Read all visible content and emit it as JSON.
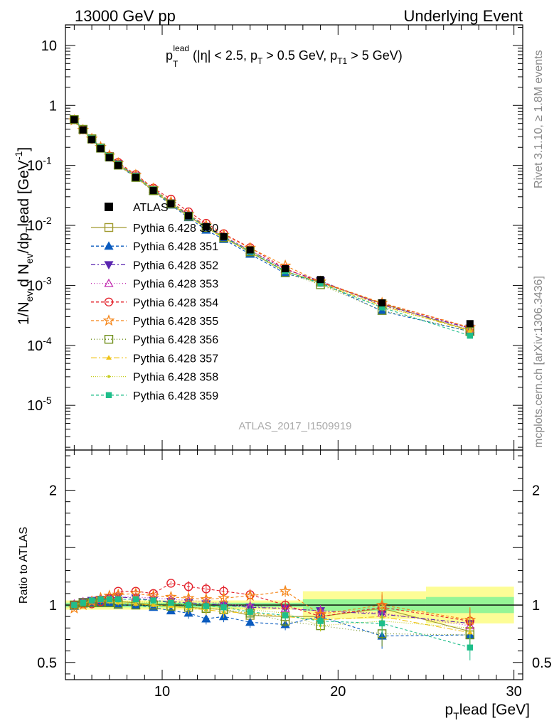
{
  "header": {
    "left": "13000 GeV pp",
    "right": "Underlying Event"
  },
  "side": {
    "rivet": "Rivet 3.1.10, ≥ 1.8M events",
    "mcplots": "mcplots.cern.ch [arXiv:1306.3436]"
  },
  "chart_data": [
    {
      "type": "line",
      "panel": "main",
      "title": "p_T^lead (|η| < 2.5, p_T > 0.5 GeV, p_T1 > 5 GeV)",
      "title_parts": {
        "p1": "p",
        "sup1": "lead",
        "sub1": "T",
        "mid": " (|η| < 2.5, p",
        "sub2": "T",
        "mid2": " > 0.5 GeV, p",
        "sub3": "T1",
        "end": " > 5 GeV)"
      },
      "ylabel": "1/N_ev d N_ev/dp_T^lead [GeV^-1]",
      "ylabel_parts": {
        "a": "1/N",
        "sub1": "ev",
        "b": " d N",
        "sub2": "ev",
        "c": "/dp",
        "sub3": "T",
        "d": "lead [GeV",
        "sup": "-1",
        "e": "]"
      },
      "yscale": "log",
      "ylim": [
        1.8e-06,
        22
      ],
      "xlim": [
        4.5,
        30.5
      ],
      "watermark": "ATLAS_2017_I1509919",
      "ytick_labels": [
        {
          "mant": "10",
          "exp": "-5",
          "v": 1e-05
        },
        {
          "mant": "10",
          "exp": "-4",
          "v": 0.0001
        },
        {
          "mant": "10",
          "exp": "-3",
          "v": 0.001
        },
        {
          "mant": "10",
          "exp": "-2",
          "v": 0.01
        },
        {
          "mant": "10",
          "exp": "-1",
          "v": 0.1
        },
        {
          "mant": "1",
          "exp": "",
          "v": 1
        },
        {
          "mant": "10",
          "exp": "",
          "v": 10
        }
      ],
      "x": [
        5.0,
        5.5,
        6.0,
        6.5,
        7.0,
        7.5,
        8.5,
        9.5,
        10.5,
        11.5,
        12.5,
        13.5,
        15.0,
        17.0,
        19.0,
        22.5,
        27.5
      ],
      "atlas_values": [
        0.58,
        0.39,
        0.27,
        0.19,
        0.135,
        0.1,
        0.063,
        0.038,
        0.023,
        0.0145,
        0.0095,
        0.0065,
        0.0039,
        0.0019,
        0.00125,
        0.00051,
        0.00023
      ],
      "legend_position": "center-left"
    },
    {
      "type": "line",
      "panel": "ratio",
      "ylabel": "Ratio to ATLAS",
      "xlabel": "p_T^lead [GeV]",
      "xlabel_parts": {
        "a": "p",
        "sub": "T",
        "b": "lead [GeV]"
      },
      "ylim": [
        0.35,
        2.35
      ],
      "xlim": [
        4.5,
        30.5
      ],
      "xtick_labels": [
        "10",
        "20",
        "30"
      ],
      "ytick_labels": [
        "0.5",
        "1",
        "2"
      ],
      "xticks": [
        10,
        20,
        30
      ],
      "yticks": [
        0.5,
        1,
        2
      ],
      "atlas_uncertainty_bands": [
        {
          "x0": 4.5,
          "x1": 18.0,
          "inner": 0.02,
          "outer": 0.04
        },
        {
          "x0": 18.0,
          "x1": 25.0,
          "inner": 0.05,
          "outer": 0.12
        },
        {
          "x0": 25.0,
          "x1": 30.0,
          "inner": 0.07,
          "outer": 0.16
        }
      ],
      "x": [
        5.0,
        5.5,
        6.0,
        6.5,
        7.0,
        7.5,
        8.5,
        9.5,
        10.5,
        11.5,
        12.5,
        13.5,
        15.0,
        17.0,
        19.0,
        22.5,
        27.5
      ],
      "series": [
        {
          "name": "Pythia 6.428 350",
          "color": "#a09a2e",
          "marker": "square-open",
          "dash": "",
          "values": [
            1.0,
            1.02,
            1.03,
            1.03,
            1.04,
            1.03,
            1.02,
            1.0,
            0.99,
            0.98,
            0.97,
            0.96,
            0.91,
            0.9,
            0.9,
            0.97,
            0.77
          ]
        },
        {
          "name": "Pythia 6.428 351",
          "color": "#0a5bbf",
          "marker": "triangle-up",
          "dash": "4,3",
          "values": [
            0.99,
            1.01,
            1.02,
            1.02,
            1.02,
            1.0,
            1.0,
            0.98,
            0.95,
            0.93,
            0.88,
            0.9,
            0.85,
            0.83,
            0.9,
            0.73,
            0.74
          ]
        },
        {
          "name": "Pythia 6.428 352",
          "color": "#5a26b0",
          "marker": "triangle-down",
          "dash": "6,3,2,3",
          "values": [
            1.0,
            1.03,
            1.04,
            1.05,
            1.06,
            1.07,
            1.06,
            1.04,
            1.03,
            1.02,
            1.01,
            1.0,
            0.98,
            0.97,
            0.95,
            0.92,
            0.84
          ]
        },
        {
          "name": "Pythia 6.428 353",
          "color": "#c22db0",
          "marker": "triangle-up-open",
          "dash": "1,3",
          "values": [
            1.01,
            1.03,
            1.04,
            1.05,
            1.06,
            1.07,
            1.07,
            1.06,
            1.05,
            1.04,
            1.03,
            1.01,
            0.99,
            0.97,
            0.95,
            0.93,
            0.82
          ]
        },
        {
          "name": "Pythia 6.428 354",
          "color": "#e3202a",
          "marker": "circle-open",
          "dash": "4,3",
          "values": [
            1.0,
            1.01,
            1.01,
            1.03,
            1.06,
            1.12,
            1.12,
            1.1,
            1.19,
            1.16,
            1.14,
            1.12,
            1.09,
            1.0,
            0.9,
            0.98,
            0.86
          ]
        },
        {
          "name": "Pythia 6.428 355",
          "color": "#f58518",
          "marker": "star-open",
          "dash": "4,3",
          "values": [
            0.97,
            1.0,
            1.03,
            1.06,
            1.08,
            1.09,
            1.1,
            1.08,
            1.07,
            1.06,
            1.05,
            1.06,
            1.08,
            1.12,
            0.92,
            1.0,
            0.87
          ]
        },
        {
          "name": "Pythia 6.428 356",
          "color": "#6f8f1a",
          "marker": "square-open",
          "dash": "1,3",
          "values": [
            1.0,
            1.02,
            1.02,
            1.02,
            1.02,
            1.01,
            1.0,
            1.0,
            0.99,
            0.98,
            0.97,
            0.96,
            0.93,
            0.86,
            0.82,
            0.75,
            0.74
          ]
        },
        {
          "name": "Pythia 6.428 357",
          "color": "#f0c419",
          "marker": "tri-dot",
          "dash": "8,3,2,3",
          "values": [
            1.0,
            1.02,
            1.03,
            1.04,
            1.03,
            1.02,
            1.01,
            1.0,
            0.99,
            0.97,
            0.96,
            0.94,
            0.93,
            0.9,
            0.87,
            0.9,
            0.76
          ]
        },
        {
          "name": "Pythia 6.428 358",
          "color": "#c5cc1a",
          "marker": "dot",
          "dash": "1,2",
          "values": [
            1.0,
            1.02,
            1.03,
            1.04,
            1.04,
            1.03,
            1.03,
            1.02,
            1.01,
            1.0,
            0.99,
            0.98,
            0.96,
            0.93,
            0.82,
            0.86,
            0.8
          ]
        },
        {
          "name": "Pythia 6.428 359",
          "color": "#1fbe8a",
          "marker": "square-small",
          "dash": "4,3",
          "values": [
            1.0,
            1.02,
            1.04,
            1.05,
            1.05,
            1.05,
            1.05,
            1.04,
            1.02,
            1.0,
            0.99,
            0.98,
            0.94,
            0.91,
            0.86,
            0.84,
            0.63
          ]
        }
      ]
    }
  ],
  "legend": {
    "atlas_label": "ATLAS",
    "items": [
      "Pythia 6.428 350",
      "Pythia 6.428 351",
      "Pythia 6.428 352",
      "Pythia 6.428 353",
      "Pythia 6.428 354",
      "Pythia 6.428 355",
      "Pythia 6.428 356",
      "Pythia 6.428 357",
      "Pythia 6.428 358",
      "Pythia 6.428 359"
    ]
  }
}
